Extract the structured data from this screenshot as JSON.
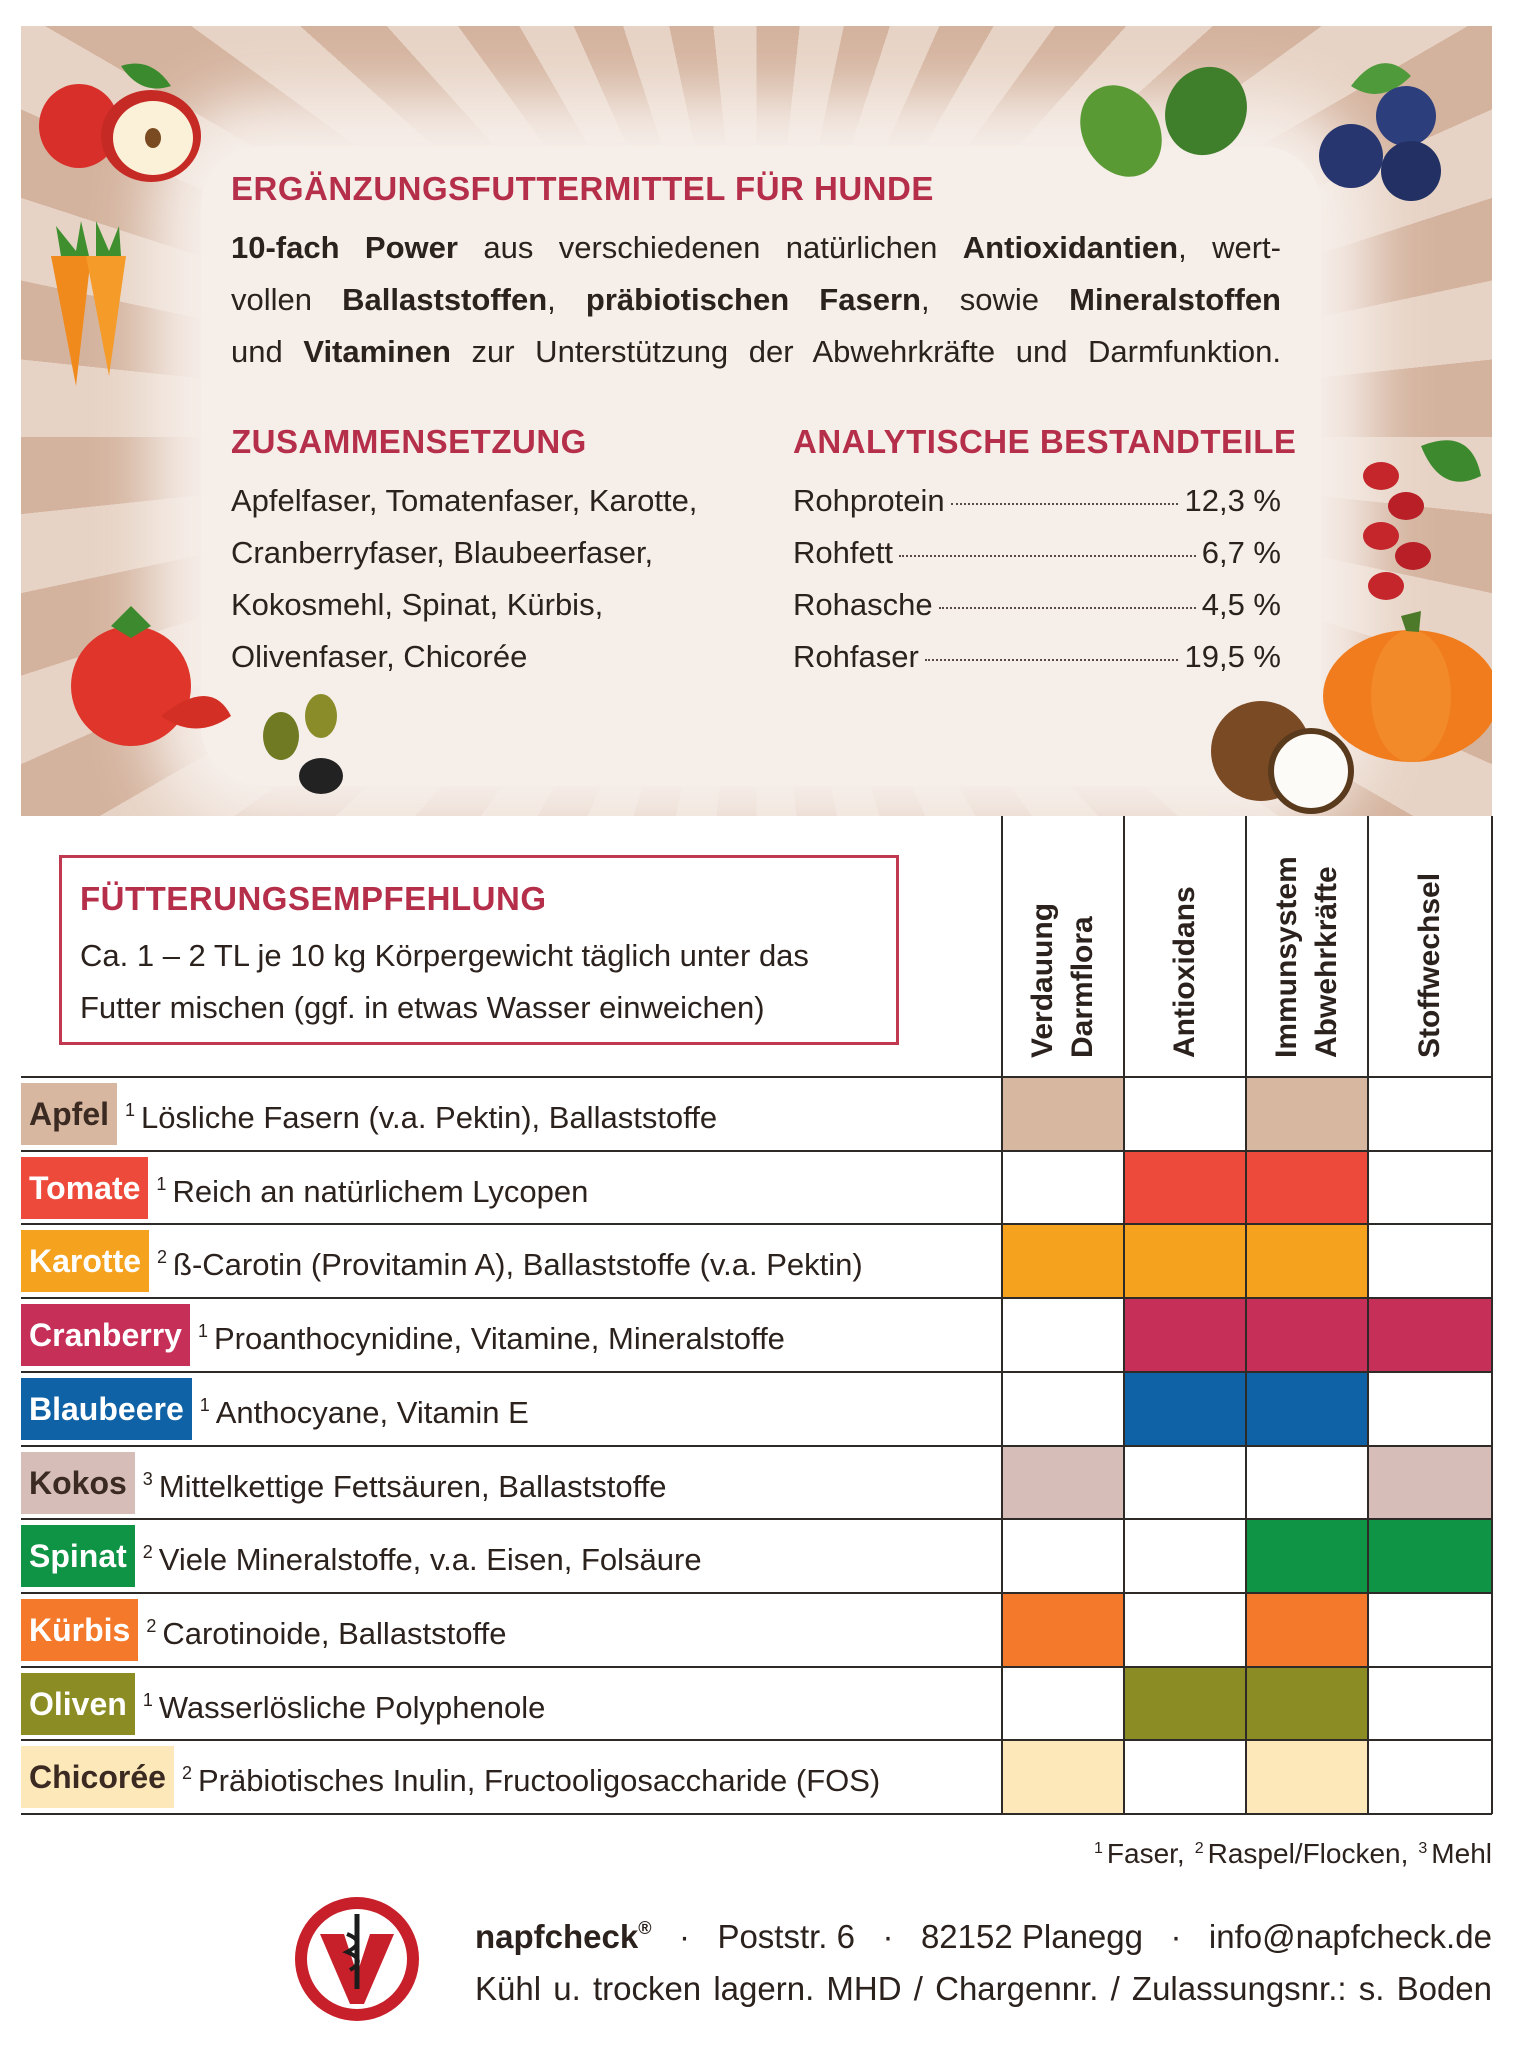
{
  "header": {
    "title": "ERGÄNZUNGSFUTTERMITTEL FÜR HUNDE",
    "intro": [
      [
        {
          "t": "10-fach Power",
          "b": true
        },
        {
          "t": " aus verschiedenen natürlichen "
        },
        {
          "t": "Antioxidantien",
          "b": true
        },
        {
          "t": ", wert-"
        }
      ],
      [
        {
          "t": "vollen "
        },
        {
          "t": "Ballaststoffen",
          "b": true
        },
        {
          "t": ", "
        },
        {
          "t": "präbiotischen Fasern",
          "b": true
        },
        {
          "t": ", sowie "
        },
        {
          "t": "Mineralstoffen",
          "b": true
        }
      ],
      [
        {
          "t": "und "
        },
        {
          "t": "Vitaminen",
          "b": true
        },
        {
          "t": " zur Unterstützung der Abwehrkräfte und Darmfunktion."
        }
      ]
    ]
  },
  "composition": {
    "title": "ZUSAMMENSETZUNG",
    "lines": [
      "Apfelfaser, Tomatenfaser, Karotte,",
      "Cranberryfaser, Blaubeerfaser,",
      "Kokosmehl, Spinat, Kürbis,",
      "Olivenfaser, Chicorée"
    ]
  },
  "analysis": {
    "title": "ANALYTISCHE BESTANDTEILE",
    "rows": [
      {
        "name": "Rohprotein",
        "value": "12,3 %"
      },
      {
        "name": "Rohfett",
        "value": "6,7 %"
      },
      {
        "name": "Rohasche",
        "value": "4,5 %"
      },
      {
        "name": "Rohfaser",
        "value": "19,5 %"
      }
    ]
  },
  "feeding": {
    "title": "FÜTTERUNGSEMPFEHLUNG",
    "lines": [
      "Ca. 1 – 2 TL je 10 kg Körpergewicht täglich unter das",
      "Futter mischen (ggf. in etwas Wasser einweichen)"
    ]
  },
  "table": {
    "columns": [
      [
        "Verdauung",
        "Darmflora"
      ],
      [
        "Antioxidans"
      ],
      [
        "Immunsystem",
        "Abwehrkräfte"
      ],
      [
        "Stoffwechsel"
      ]
    ],
    "rows": [
      {
        "name": "Apfel",
        "note": "1",
        "text": "Lösliche Fasern (v.a. Pektin), Ballaststoffe",
        "color": "#d8b7a1",
        "text_color": "#3a2a22",
        "marks": [
          true,
          false,
          true,
          false
        ]
      },
      {
        "name": "Tomate",
        "note": "1",
        "text": "Reich an natürlichem Lycopen",
        "color": "#ee4a3b",
        "text_color": "#ffffff",
        "marks": [
          false,
          true,
          true,
          false
        ]
      },
      {
        "name": "Karotte",
        "note": "2",
        "text": "ß-Carotin (Provitamin A), Ballaststoffe (v.a. Pektin)",
        "color": "#f5a21e",
        "text_color": "#ffffff",
        "marks": [
          true,
          true,
          true,
          false
        ]
      },
      {
        "name": "Cranberry",
        "note": "1",
        "text": "Proanthocynidine, Vitamine, Mineralstoffe",
        "color": "#c52f58",
        "text_color": "#ffffff",
        "marks": [
          false,
          true,
          true,
          true
        ]
      },
      {
        "name": "Blaubeere",
        "note": "1",
        "text": "Anthocyane, Vitamin E",
        "color": "#1062a6",
        "text_color": "#ffffff",
        "marks": [
          false,
          true,
          true,
          false
        ]
      },
      {
        "name": "Kokos",
        "note": "3",
        "text": "Mittelkettige Fettsäuren, Ballaststoffe",
        "color": "#d6bdb8",
        "text_color": "#3a2a22",
        "marks": [
          true,
          false,
          false,
          true
        ]
      },
      {
        "name": "Spinat",
        "note": "2",
        "text": "Viele Mineralstoffe, v.a. Eisen, Folsäure",
        "color": "#0f9345",
        "text_color": "#ffffff",
        "marks": [
          false,
          false,
          true,
          true
        ]
      },
      {
        "name": "Kürbis",
        "note": "2",
        "text": "Carotinoide, Ballaststoffe",
        "color": "#f4792a",
        "text_color": "#ffffff",
        "marks": [
          true,
          false,
          true,
          false
        ]
      },
      {
        "name": "Oliven",
        "note": "1",
        "text": "Wasserlösliche Polyphenole",
        "color": "#8b8c23",
        "text_color": "#ffffff",
        "marks": [
          false,
          true,
          true,
          false
        ]
      },
      {
        "name": "Chicorée",
        "note": "2",
        "text": "Präbiotisches Inulin, Fructooligosaccharide (FOS)",
        "color": "#fde8b9",
        "text_color": "#3a2a22",
        "marks": [
          true,
          false,
          true,
          false
        ]
      }
    ]
  },
  "footnotes": [
    {
      "mark": "1",
      "text": "Faser,"
    },
    {
      "mark": "2",
      "text": "Raspel/Flocken,"
    },
    {
      "mark": "3",
      "text": "Mehl"
    }
  ],
  "footer": {
    "brand": "napfcheck",
    "registered": "®",
    "separator": "·",
    "contact": [
      "Poststr. 6",
      "82152 Planegg",
      "info@napfcheck.de"
    ],
    "storage": "Kühl u. trocken lagern. MHD / Chargennr. / Zulassungsnr.: s. Boden"
  }
}
